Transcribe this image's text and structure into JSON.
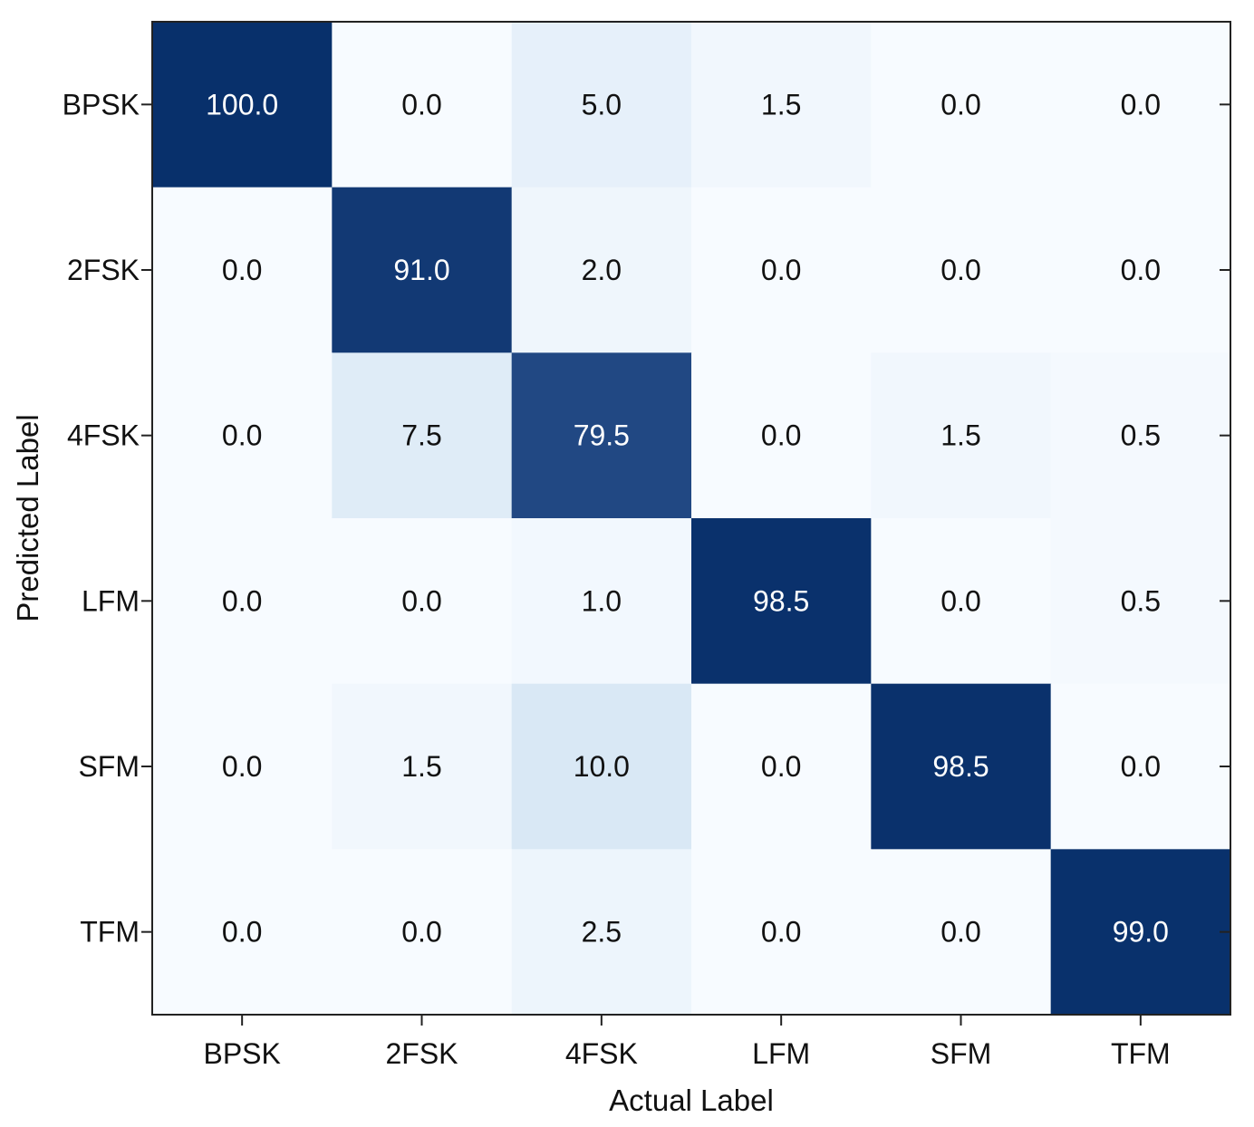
{
  "chart_data": {
    "type": "heatmap",
    "title": "",
    "xlabel": "Actual Label",
    "ylabel": "Predicted Label",
    "x_categories": [
      "BPSK",
      "2FSK",
      "4FSK",
      "LFM",
      "SFM",
      "TFM"
    ],
    "y_categories": [
      "BPSK",
      "2FSK",
      "4FSK",
      "LFM",
      "SFM",
      "TFM"
    ],
    "values": [
      [
        100.0,
        0.0,
        5.0,
        1.5,
        0.0,
        0.0
      ],
      [
        0.0,
        91.0,
        2.0,
        0.0,
        0.0,
        0.0
      ],
      [
        0.0,
        7.5,
        79.5,
        0.0,
        1.5,
        0.5
      ],
      [
        0.0,
        0.0,
        1.0,
        98.5,
        0.0,
        0.5
      ],
      [
        0.0,
        1.5,
        10.0,
        0.0,
        98.5,
        0.0
      ],
      [
        0.0,
        0.0,
        2.5,
        0.0,
        0.0,
        99.0
      ]
    ],
    "value_range": [
      0,
      100
    ],
    "colormap": "Blues",
    "color_low": "#f7fbff",
    "color_high": "#08306b",
    "text_dark": "#111111",
    "text_light": "#ffffff",
    "grid": false
  }
}
